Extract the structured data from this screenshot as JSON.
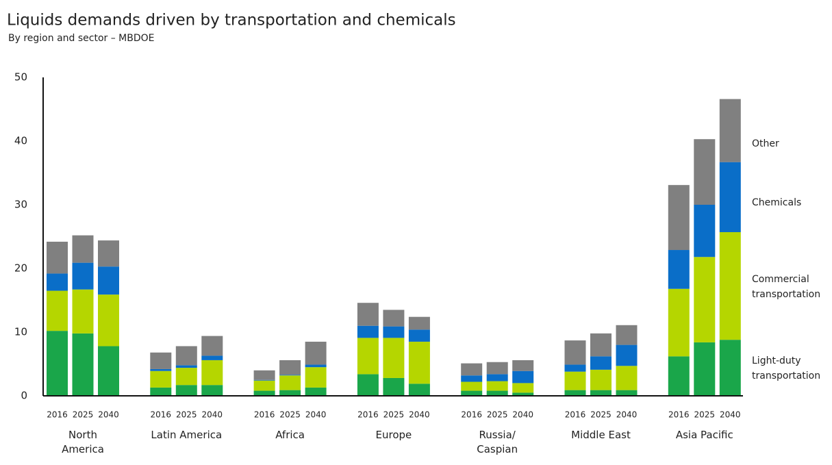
{
  "chart_data": {
    "type": "bar",
    "stacked": true,
    "title": "Liquids demands driven by transportation and chemicals",
    "subtitle": "By region and sector – MBDOE",
    "groups": [
      [
        "North",
        "America"
      ],
      [
        "Latin America"
      ],
      [
        "Africa"
      ],
      [
        "Europe"
      ],
      [
        "Russia/",
        "Caspian"
      ],
      [
        "Middle East"
      ],
      [
        "Asia Pacific"
      ]
    ],
    "years": [
      "2016",
      "2025",
      "2040"
    ],
    "ylim": [
      0,
      50
    ],
    "yticks": [
      0,
      10,
      20,
      30,
      40,
      50
    ],
    "series": [
      {
        "name": "Light-duty transportation",
        "color": "#1aa64a",
        "values": [
          10.2,
          9.8,
          7.8,
          1.3,
          1.7,
          1.7,
          0.8,
          0.9,
          1.3,
          3.4,
          2.8,
          1.9,
          0.8,
          0.8,
          0.5,
          0.9,
          0.9,
          0.9,
          6.2,
          8.4,
          8.8
        ]
      },
      {
        "name": "Commercial transportation",
        "color": "#b5d600",
        "values": [
          6.3,
          6.9,
          8.1,
          2.6,
          2.7,
          3.9,
          1.6,
          2.3,
          3.2,
          5.7,
          6.3,
          6.6,
          1.4,
          1.5,
          1.5,
          2.9,
          3.2,
          3.8,
          10.6,
          13.4,
          16.9
        ]
      },
      {
        "name": "Chemicals",
        "color": "#0a6ec8",
        "values": [
          2.7,
          4.2,
          4.4,
          0.3,
          0.4,
          0.7,
          0.1,
          0.1,
          0.4,
          1.9,
          1.8,
          1.9,
          1.0,
          1.1,
          1.9,
          1.1,
          2.1,
          3.3,
          6.1,
          8.2,
          11.0
        ]
      },
      {
        "name": "Other",
        "color": "#808080",
        "values": [
          5.0,
          4.3,
          4.1,
          2.6,
          3.0,
          3.1,
          1.5,
          2.3,
          3.6,
          3.6,
          2.6,
          2.0,
          1.9,
          1.9,
          1.7,
          3.8,
          3.6,
          3.1,
          10.2,
          10.3,
          9.9
        ]
      }
    ]
  }
}
